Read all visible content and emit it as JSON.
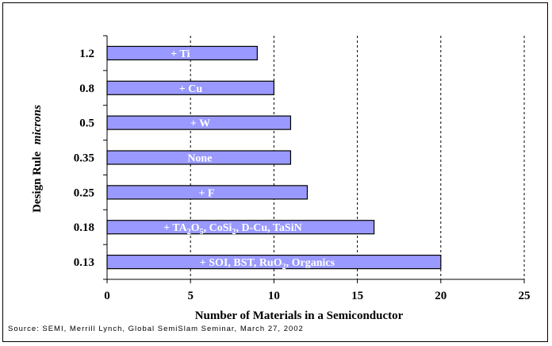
{
  "chart_data": {
    "type": "bar",
    "orientation": "horizontal",
    "categories": [
      "1.2",
      "0.8",
      "0.5",
      "0.35",
      "0.25",
      "0.18",
      "0.13"
    ],
    "values": [
      9,
      10,
      11,
      11,
      12,
      16,
      20
    ],
    "bar_labels": [
      [
        "+ Ti"
      ],
      [
        "+ Cu"
      ],
      [
        "+ W"
      ],
      [
        "None"
      ],
      [
        "+ F"
      ],
      [
        "+ TA",
        {
          "t": "2",
          "sub": true
        },
        "O",
        {
          "t": "5",
          "sub": true
        },
        ", CoSi",
        {
          "t": "2",
          "sub": true
        },
        ", D-Cu, TaSiN"
      ],
      [
        "+ SOI, BST, RuO",
        {
          "t": "2",
          "sub": true
        },
        ", Organics"
      ]
    ],
    "xlabel": "Number of Materials in a Semiconductor",
    "ylabel": "Design Rule",
    "ylabel_unit": "microns",
    "xlim": [
      0,
      25
    ],
    "xticks": [
      0,
      5,
      10,
      15,
      20,
      25
    ],
    "grid": "vertical dashed",
    "bar_color": "#9999ff",
    "bar_edge_color": "#000000",
    "source": "Source: SEMI, Merrill Lynch, Global SemiSlam Seminar, March 27, 2002"
  }
}
